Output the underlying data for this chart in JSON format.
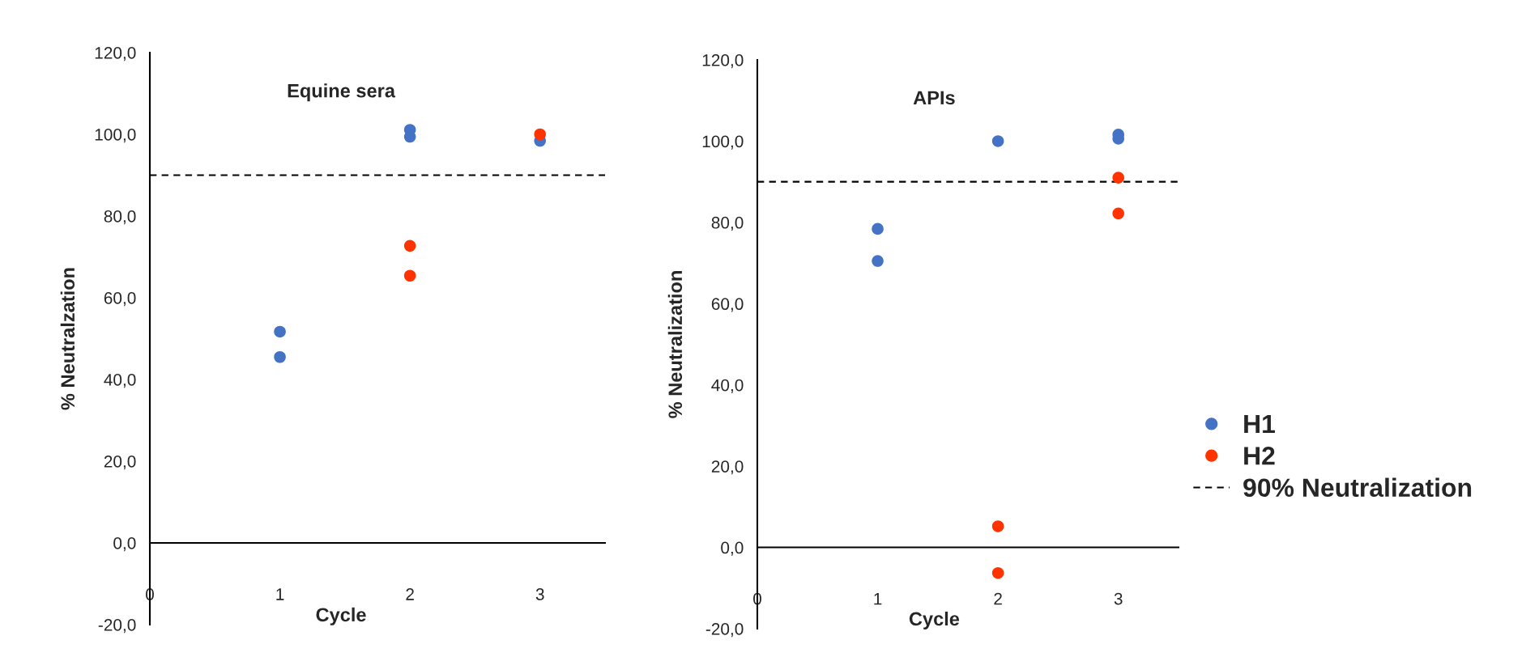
{
  "chart_data": [
    {
      "type": "scatter",
      "title": "Equine sera",
      "xlabel": "Cycle",
      "ylabel": "% Neutralzation",
      "xlim": [
        0,
        3.5
      ],
      "xticks": [
        0,
        1,
        2,
        3
      ],
      "ylim": [
        -20,
        120
      ],
      "yticks": [
        {
          "value": -20,
          "label": "-20,0"
        },
        {
          "value": 0,
          "label": "0,0"
        },
        {
          "value": 20,
          "label": "20,0"
        },
        {
          "value": 40,
          "label": "40,0"
        },
        {
          "value": 60,
          "label": "60,0"
        },
        {
          "value": 80,
          "label": "80,0"
        },
        {
          "value": 100,
          "label": "100,0"
        },
        {
          "value": 120,
          "label": "120,0"
        }
      ],
      "marker": "circle",
      "legend": false,
      "series": [
        {
          "color": "#4472c4",
          "x": [
            1,
            1,
            2,
            2,
            3
          ],
          "values": [
            51.7,
            45.5,
            101.1,
            99.4,
            98.4
          ]
        },
        {
          "color": "#ff3300",
          "x": [
            2,
            2,
            3
          ],
          "values": [
            72.7,
            65.4,
            100
          ]
        }
      ],
      "ref_lines": [
        {
          "axis": "y",
          "value": 90,
          "color": "#000000",
          "line_style": "dashed"
        }
      ]
    },
    {
      "type": "scatter",
      "title": "APIs",
      "xlabel": "Cycle",
      "ylabel": "% Neutralization",
      "xlim": [
        0,
        3.5
      ],
      "xticks": [
        0,
        1,
        2,
        3
      ],
      "ylim": [
        -20,
        120
      ],
      "yticks": [
        {
          "value": -20,
          "label": "-20,0"
        },
        {
          "value": 0,
          "label": "0,0"
        },
        {
          "value": 20,
          "label": "20,0"
        },
        {
          "value": 40,
          "label": "40,0"
        },
        {
          "value": 60,
          "label": "60,0"
        },
        {
          "value": 80,
          "label": "80,0"
        },
        {
          "value": 100,
          "label": "100,0"
        },
        {
          "value": 120,
          "label": "120,0"
        }
      ],
      "marker": "circle",
      "legend": "right",
      "series": [
        {
          "name": "H1",
          "color": "#4472c4",
          "x": [
            1,
            1,
            2,
            3,
            3
          ],
          "values": [
            78.4,
            70.5,
            100,
            101.6,
            100.6
          ]
        },
        {
          "name": "H2",
          "color": "#ff3300",
          "x": [
            2,
            2,
            3,
            3
          ],
          "values": [
            5.2,
            -6.3,
            91.0,
            82.2
          ]
        }
      ],
      "ref_lines": [
        {
          "axis": "y",
          "value": 90,
          "label": "90% Neutralization",
          "color": "#000000",
          "line_style": "dashed"
        }
      ]
    }
  ]
}
